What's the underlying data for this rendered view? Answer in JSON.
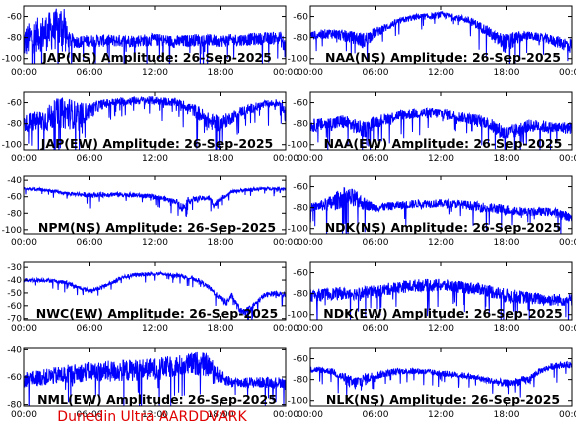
{
  "footer": {
    "credit": "Dunedin Ultra AARDDVARK",
    "color": "#e00000"
  },
  "style": {
    "trace_color": "#0000ff",
    "frame_color": "#000000",
    "background": "#ffffff"
  },
  "chart_data": [
    {
      "type": "line",
      "title": "JAP(NS) Amplitude: 26-Sep-2025",
      "x_ticks": [
        "00:00",
        "06:00",
        "12:00",
        "18:00",
        "00:00"
      ],
      "y_ticks": [
        -60,
        -80,
        -100
      ],
      "ylim": [
        -105,
        -50
      ],
      "series": [
        {
          "x": [
            0,
            1,
            2,
            3,
            3.7,
            4,
            5,
            6,
            8,
            10,
            12,
            14,
            16,
            18,
            20,
            22,
            23.5,
            24
          ],
          "values": [
            -85,
            -78,
            -75,
            -72,
            -70,
            -82,
            -84,
            -83,
            -83,
            -83,
            -82,
            -84,
            -82,
            -83,
            -82,
            -81,
            -80,
            -92
          ],
          "spread": [
            16,
            16,
            18,
            20,
            28,
            8,
            6,
            6,
            6,
            6,
            6,
            6,
            6,
            6,
            6,
            6,
            6,
            12
          ]
        }
      ]
    },
    {
      "type": "line",
      "title": "NAA(NS) Amplitude: 26-Sep-2025",
      "x_ticks": [
        "00:00",
        "06:00",
        "12:00",
        "18:00",
        "00:00"
      ],
      "y_ticks": [
        -60,
        -80,
        -100
      ],
      "ylim": [
        -105,
        -50
      ],
      "series": [
        {
          "x": [
            0,
            2,
            4,
            5,
            6,
            8,
            9,
            10,
            11,
            12,
            13,
            14,
            15,
            16,
            17,
            18,
            19,
            20,
            21,
            22,
            23,
            24
          ],
          "values": [
            -78,
            -76,
            -80,
            -83,
            -75,
            -65,
            -62,
            -60,
            -60,
            -58,
            -60,
            -62,
            -66,
            -72,
            -80,
            -86,
            -80,
            -78,
            -80,
            -82,
            -85,
            -88
          ],
          "spread": [
            4,
            5,
            6,
            8,
            5,
            3,
            3,
            3,
            3,
            3,
            3,
            3,
            4,
            5,
            6,
            10,
            6,
            4,
            4,
            5,
            6,
            8
          ]
        }
      ]
    },
    {
      "type": "line",
      "title": "JAP(EW) Amplitude: 26-Sep-2025",
      "x_ticks": [
        "00:00",
        "06:00",
        "12:00",
        "18:00",
        "00:00"
      ],
      "y_ticks": [
        -60,
        -80,
        -100
      ],
      "ylim": [
        -105,
        -50
      ],
      "series": [
        {
          "x": [
            0,
            1,
            2,
            3,
            4,
            5,
            6,
            7,
            8,
            10,
            12,
            14,
            15,
            16,
            17,
            18,
            19,
            20,
            22,
            23.5,
            24
          ],
          "values": [
            -80,
            -78,
            -76,
            -70,
            -70,
            -72,
            -68,
            -62,
            -60,
            -58,
            -58,
            -60,
            -64,
            -70,
            -78,
            -80,
            -74,
            -68,
            -62,
            -60,
            -70
          ],
          "spread": [
            8,
            10,
            12,
            14,
            16,
            12,
            8,
            5,
            4,
            4,
            4,
            4,
            5,
            7,
            8,
            8,
            6,
            5,
            4,
            4,
            10
          ]
        }
      ]
    },
    {
      "type": "line",
      "title": "NAA(EW) Amplitude: 26-Sep-2025",
      "x_ticks": [
        "00:00",
        "06:00",
        "12:00",
        "18:00",
        "00:00"
      ],
      "y_ticks": [
        -60,
        -80,
        -100
      ],
      "ylim": [
        -105,
        -50
      ],
      "series": [
        {
          "x": [
            0,
            2,
            3,
            4,
            5,
            6,
            8,
            10,
            12,
            14,
            16,
            17,
            18,
            19,
            20,
            21,
            22,
            24
          ],
          "values": [
            -82,
            -80,
            -78,
            -82,
            -86,
            -78,
            -72,
            -70,
            -70,
            -74,
            -78,
            -84,
            -90,
            -86,
            -82,
            -82,
            -84,
            -84
          ],
          "spread": [
            6,
            7,
            7,
            7,
            8,
            6,
            5,
            5,
            5,
            5,
            6,
            7,
            8,
            7,
            6,
            6,
            6,
            6
          ]
        }
      ]
    },
    {
      "type": "line",
      "title": "NPM(NS) Amplitude: 26-Sep-2025",
      "x_ticks": [
        "00:00",
        "06:00",
        "12:00",
        "18:00",
        "00:00"
      ],
      "y_ticks": [
        -40,
        -60,
        -80,
        -100
      ],
      "ylim": [
        -105,
        -35
      ],
      "series": [
        {
          "x": [
            0,
            2,
            4,
            6,
            8,
            10,
            12,
            14,
            14.5,
            15,
            16,
            17,
            17.5,
            18,
            18.5,
            19,
            20,
            22,
            24
          ],
          "values": [
            -50,
            -52,
            -56,
            -58,
            -57,
            -58,
            -60,
            -66,
            -74,
            -65,
            -62,
            -62,
            -70,
            -62,
            -58,
            -54,
            -52,
            -50,
            -50
          ],
          "spread": [
            2,
            2,
            2,
            3,
            3,
            3,
            3,
            3,
            6,
            4,
            3,
            3,
            5,
            3,
            2,
            2,
            2,
            2,
            2
          ]
        }
      ]
    },
    {
      "type": "line",
      "title": "NDK(NS) Amplitude: 26-Sep-2025",
      "x_ticks": [
        "00:00",
        "06:00",
        "12:00",
        "18:00",
        "00:00"
      ],
      "y_ticks": [
        -60,
        -80,
        -100
      ],
      "ylim": [
        -105,
        -50
      ],
      "series": [
        {
          "x": [
            0,
            1,
            2,
            3,
            4,
            5,
            6,
            8,
            10,
            12,
            14,
            16,
            18,
            20,
            22,
            23,
            24
          ],
          "values": [
            -80,
            -78,
            -76,
            -70,
            -72,
            -76,
            -80,
            -78,
            -76,
            -76,
            -77,
            -80,
            -82,
            -84,
            -84,
            -86,
            -90
          ],
          "spread": [
            4,
            5,
            8,
            10,
            10,
            6,
            4,
            4,
            4,
            4,
            4,
            5,
            5,
            4,
            4,
            5,
            4
          ]
        }
      ]
    },
    {
      "type": "line",
      "title": "NWC(EW) Amplitude: 26-Sep-2025",
      "x_ticks": [
        "00:00",
        "06:00",
        "12:00",
        "18:00",
        "00:00"
      ],
      "y_ticks": [
        -30,
        -40,
        -50,
        -60,
        -70
      ],
      "ylim": [
        -71,
        -26
      ],
      "series": [
        {
          "x": [
            0,
            1,
            2,
            4,
            5,
            6,
            7,
            8,
            9,
            10,
            12,
            14,
            16,
            17,
            18,
            18.5,
            19,
            19.5,
            20,
            21,
            22,
            23,
            24
          ],
          "values": [
            -40,
            -40,
            -40,
            -42,
            -46,
            -48,
            -46,
            -42,
            -38,
            -36,
            -35,
            -36,
            -40,
            -46,
            -54,
            -58,
            -52,
            -60,
            -66,
            -60,
            -52,
            -50,
            -52
          ],
          "spread": [
            1.5,
            1.5,
            1.5,
            1.5,
            1.5,
            1.5,
            1.5,
            1.5,
            1.5,
            1.5,
            1.5,
            1.5,
            1.5,
            2,
            2,
            3,
            2,
            3,
            3,
            2,
            2,
            2,
            2
          ]
        }
      ]
    },
    {
      "type": "line",
      "title": "NDK(EW) Amplitude: 26-Sep-2025",
      "x_ticks": [
        "00:00",
        "06:00",
        "12:00",
        "18:00",
        "00:00"
      ],
      "y_ticks": [
        -60,
        -80,
        -100
      ],
      "ylim": [
        -105,
        -50
      ],
      "series": [
        {
          "x": [
            0,
            2,
            4,
            6,
            8,
            10,
            12,
            14,
            16,
            18,
            20,
            22,
            24
          ],
          "values": [
            -82,
            -80,
            -80,
            -78,
            -74,
            -72,
            -72,
            -74,
            -76,
            -82,
            -84,
            -86,
            -86
          ],
          "spread": [
            6,
            6,
            6,
            6,
            6,
            6,
            6,
            6,
            6,
            7,
            6,
            6,
            6
          ]
        }
      ]
    },
    {
      "type": "line",
      "title": "NML(EW) Amplitude: 26-Sep-2025",
      "x_ticks": [
        "00:00",
        "06:00",
        "12:00",
        "18:00",
        "00:00"
      ],
      "y_ticks": [
        -40,
        -60,
        -80
      ],
      "ylim": [
        -81,
        -39
      ],
      "series": [
        {
          "x": [
            0,
            2,
            4,
            6,
            8,
            10,
            12,
            14,
            16,
            17,
            18,
            19,
            20,
            22,
            24
          ],
          "values": [
            -62,
            -60,
            -58,
            -56,
            -56,
            -55,
            -54,
            -52,
            -50,
            -52,
            -60,
            -64,
            -64,
            -64,
            -64
          ],
          "spread": [
            6,
            6,
            7,
            7,
            8,
            8,
            8,
            8,
            9,
            8,
            5,
            4,
            4,
            4,
            4
          ]
        }
      ]
    },
    {
      "type": "line",
      "title": "NLK(NS) Amplitude: 26-Sep-2025",
      "x_ticks": [
        "00:00",
        "06:00",
        "12:00",
        "18:00",
        "00:00"
      ],
      "y_ticks": [
        -60,
        -80,
        -100
      ],
      "ylim": [
        -105,
        -50
      ],
      "series": [
        {
          "x": [
            0,
            2,
            3,
            4,
            5,
            6,
            8,
            10,
            12,
            14,
            16,
            18,
            20,
            21,
            22,
            23,
            24
          ],
          "values": [
            -70,
            -72,
            -78,
            -84,
            -80,
            -76,
            -72,
            -72,
            -74,
            -76,
            -80,
            -84,
            -80,
            -72,
            -68,
            -66,
            -66
          ],
          "spread": [
            3,
            3,
            5,
            7,
            6,
            4,
            3,
            3,
            3,
            3,
            3,
            4,
            4,
            3,
            3,
            3,
            3
          ]
        }
      ]
    }
  ]
}
